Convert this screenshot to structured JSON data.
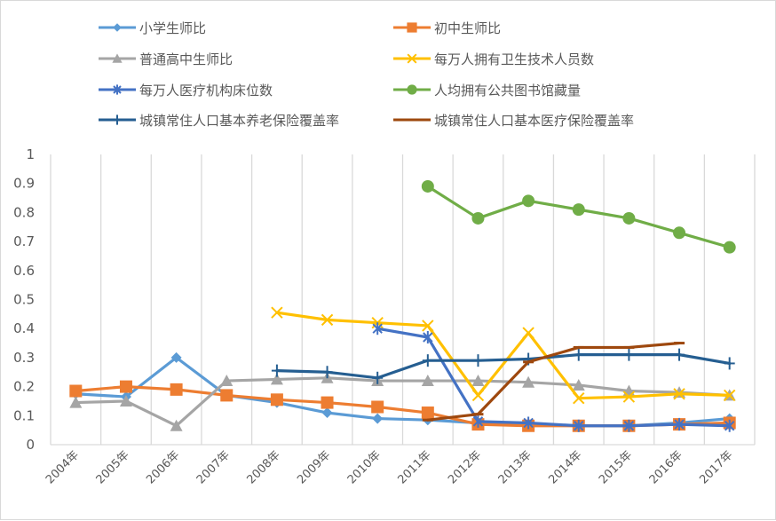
{
  "chart_data": {
    "type": "line",
    "title": "",
    "xlabel": "",
    "ylabel": "",
    "ylim": [
      0,
      1
    ],
    "yticks": [
      "0",
      "0.1",
      "0.2",
      "0.3",
      "0.4",
      "0.5",
      "0.6",
      "0.7",
      "0.8",
      "0.9",
      "1"
    ],
    "grid": "vertical",
    "legend_position": "top",
    "categories": [
      "2004年",
      "2005年",
      "2006年",
      "2007年",
      "2008年",
      "2009年",
      "2010年",
      "2011年",
      "2012年",
      "2013年",
      "2014年",
      "2015年",
      "2016年",
      "2017年"
    ],
    "series": [
      {
        "name": "小学生师比",
        "color": "#5B9BD5",
        "marker": "diamond",
        "values": [
          0.175,
          0.165,
          0.3,
          0.17,
          0.145,
          0.11,
          0.09,
          0.085,
          0.075,
          0.07,
          0.065,
          0.065,
          0.075,
          0.09
        ]
      },
      {
        "name": "初中生师比",
        "color": "#ED7D31",
        "marker": "square",
        "values": [
          0.185,
          0.2,
          0.19,
          0.17,
          0.155,
          0.145,
          0.13,
          0.11,
          0.07,
          0.065,
          0.065,
          0.065,
          0.07,
          0.075
        ]
      },
      {
        "name": "普通高中生师比",
        "color": "#A5A5A5",
        "marker": "triangle",
        "values": [
          0.145,
          0.15,
          0.065,
          0.22,
          0.225,
          0.23,
          0.22,
          0.22,
          0.22,
          0.215,
          0.205,
          0.185,
          0.18,
          0.17
        ]
      },
      {
        "name": "每万人拥有卫生技术人员数",
        "color": "#FFC000",
        "marker": "x",
        "values": [
          null,
          null,
          null,
          null,
          0.455,
          0.43,
          0.42,
          0.41,
          0.17,
          0.385,
          0.16,
          0.165,
          0.175,
          0.17
        ]
      },
      {
        "name": "每万人医疗机构床位数",
        "color": "#4472C4",
        "marker": "star",
        "values": [
          null,
          null,
          null,
          null,
          null,
          null,
          0.4,
          0.37,
          0.08,
          0.075,
          0.065,
          0.065,
          0.07,
          0.065
        ]
      },
      {
        "name": "人均拥有公共图书馆藏量",
        "color": "#70AD47",
        "marker": "circle",
        "values": [
          null,
          null,
          null,
          null,
          null,
          null,
          null,
          0.89,
          0.78,
          0.84,
          0.81,
          0.78,
          0.73,
          0.68
        ]
      },
      {
        "name": "城镇常住人口基本养老保险覆盖率",
        "color": "#255E91",
        "marker": "plus",
        "values": [
          null,
          null,
          null,
          null,
          0.255,
          0.25,
          0.23,
          0.29,
          0.29,
          0.295,
          0.31,
          0.31,
          0.31,
          0.28
        ]
      },
      {
        "name": "城镇常住人口基本医疗保险覆盖率",
        "color": "#9E480E",
        "marker": "dash",
        "values": [
          null,
          null,
          null,
          null,
          null,
          null,
          null,
          0.085,
          0.105,
          0.285,
          0.335,
          0.335,
          0.35,
          null
        ]
      }
    ]
  }
}
